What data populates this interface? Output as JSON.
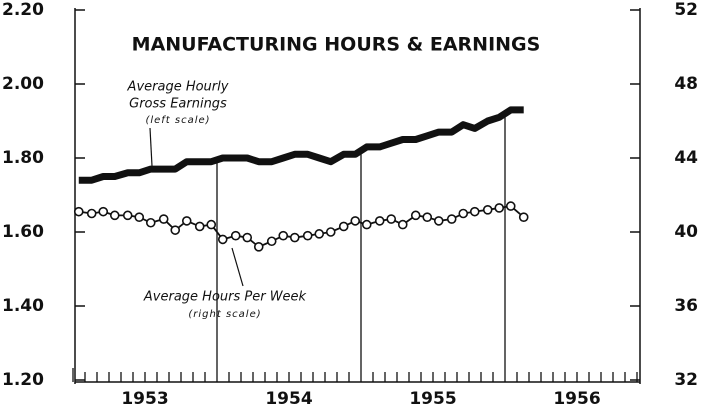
{
  "chart_data": {
    "type": "line",
    "title": "MANUFACTURING HOURS & EARNINGS",
    "annotations": [
      {
        "lines": [
          "Average Hourly",
          "Gross Earnings",
          "(left scale)"
        ]
      },
      {
        "lines": [
          "Average Hours Per Week",
          "(right scale)"
        ]
      }
    ],
    "x": [
      1953.04,
      1953.13,
      1953.21,
      1953.29,
      1953.38,
      1953.46,
      1953.54,
      1953.63,
      1953.71,
      1953.79,
      1953.88,
      1953.96,
      1954.04,
      1954.13,
      1954.21,
      1954.29,
      1954.38,
      1954.46,
      1954.54,
      1954.63,
      1954.71,
      1954.79,
      1954.88,
      1954.96,
      1955.04,
      1955.13,
      1955.21,
      1955.29,
      1955.38,
      1955.46,
      1955.54,
      1955.63,
      1955.71,
      1955.79,
      1955.88,
      1955.96,
      1956.04,
      1956.13
    ],
    "xlim": [
      1953,
      1957
    ],
    "xticks": [
      1953,
      1954,
      1955,
      1956
    ],
    "ylim": [
      1.2,
      2.2
    ],
    "yticks": [
      {
        "value": 1.2,
        "label": "1.20"
      },
      {
        "value": 1.4,
        "label": "1.40"
      },
      {
        "value": 1.6,
        "label": "1.60"
      },
      {
        "value": 1.8,
        "label": "1.80"
      },
      {
        "value": 2.0,
        "label": "2.00"
      },
      {
        "value": 2.2,
        "label": "2.20"
      }
    ],
    "y2lim": [
      32,
      52
    ],
    "y2ticks": [
      32,
      36,
      40,
      44,
      48,
      52
    ],
    "series": [
      {
        "color": "#111111",
        "axis": "y",
        "marker": "none",
        "values": [
          1.74,
          1.74,
          1.75,
          1.75,
          1.76,
          1.76,
          1.77,
          1.77,
          1.77,
          1.79,
          1.79,
          1.79,
          1.8,
          1.8,
          1.8,
          1.79,
          1.79,
          1.8,
          1.81,
          1.81,
          1.8,
          1.79,
          1.81,
          1.81,
          1.83,
          1.83,
          1.84,
          1.85,
          1.85,
          1.86,
          1.87,
          1.87,
          1.89,
          1.88,
          1.9,
          1.91,
          1.93,
          1.93
        ]
      },
      {
        "color": "#111111",
        "axis": "y2",
        "marker": "circle",
        "values": [
          41.1,
          41.0,
          41.1,
          40.9,
          40.9,
          40.8,
          40.5,
          40.7,
          40.1,
          40.6,
          40.3,
          40.4,
          39.6,
          39.8,
          39.7,
          39.2,
          39.5,
          39.8,
          39.7,
          39.8,
          39.9,
          40.0,
          40.3,
          40.6,
          40.4,
          40.6,
          40.7,
          40.4,
          40.9,
          40.8,
          40.6,
          40.7,
          41.0,
          41.1,
          41.2,
          41.3,
          41.4,
          40.8
        ]
      }
    ]
  }
}
